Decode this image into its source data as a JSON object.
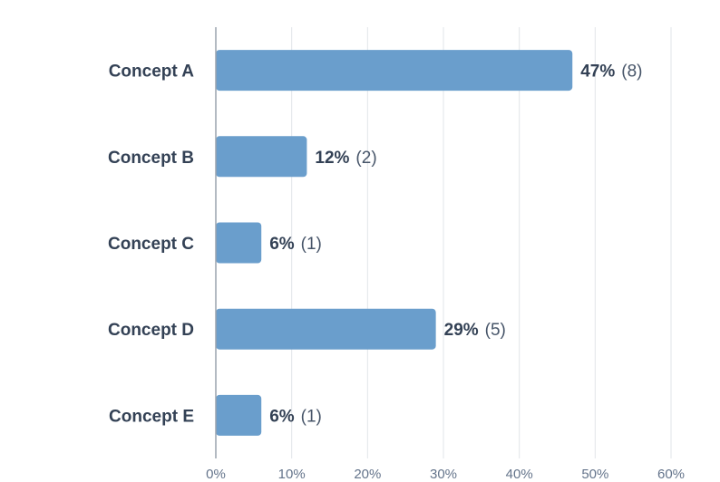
{
  "chart_data": {
    "type": "bar",
    "orientation": "horizontal",
    "categories": [
      "Concept A",
      "Concept B",
      "Concept C",
      "Concept D",
      "Concept E"
    ],
    "values": [
      47,
      12,
      6,
      29,
      6
    ],
    "counts": [
      8,
      2,
      1,
      5,
      1
    ],
    "value_labels": [
      "47%",
      "12%",
      "6%",
      "29%",
      "6%"
    ],
    "count_labels": [
      "(8)",
      "(2)",
      "(1)",
      "(5)",
      "(1)"
    ],
    "xlim": [
      0,
      60
    ],
    "xticks": [
      0,
      10,
      20,
      30,
      40,
      50,
      60
    ],
    "xtick_labels": [
      "0%",
      "10%",
      "20%",
      "30%",
      "40%",
      "50%",
      "60%"
    ],
    "grid": "vertical",
    "bar_color": "#6a9ecc",
    "title": "",
    "xlabel": "",
    "ylabel": ""
  }
}
